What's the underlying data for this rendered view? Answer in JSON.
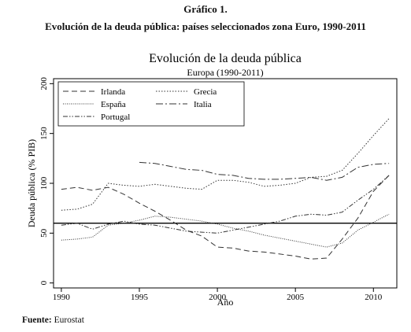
{
  "document": {
    "figure_label": "Gráfico 1.",
    "figure_caption": "Evolución de la deuda pública: países seleccionados zona Euro, 1990-2011",
    "source_label": "Fuente:",
    "source_text": "Eurostat"
  },
  "chart_data": {
    "type": "line",
    "title": "Evolución de la deuda pública",
    "subtitle": "Europa (1990-2011)",
    "xlabel": "Año",
    "ylabel": "Deuda pública (% PIB)",
    "xlim": [
      1989.5,
      2011.5
    ],
    "ylim": [
      -5,
      205
    ],
    "xticks": [
      1990,
      1995,
      2000,
      2005,
      2010
    ],
    "yticks": [
      0,
      50,
      100,
      150,
      200
    ],
    "reference_line": 60,
    "grid": false,
    "legend_position": "top",
    "series": [
      {
        "name": "Irlanda",
        "dash": "7,4",
        "x": [
          1990,
          1991,
          1992,
          1993,
          1994,
          1995,
          1996,
          1997,
          1998,
          1999,
          2000,
          2001,
          2002,
          2003,
          2004,
          2005,
          2006,
          2007,
          2008,
          2009,
          2010,
          2011
        ],
        "y": [
          94,
          96,
          93,
          96,
          89,
          80,
          72,
          63,
          53,
          47,
          36,
          35,
          32,
          31,
          29,
          27,
          24,
          25,
          44,
          65,
          92,
          108
        ]
      },
      {
        "name": "Grecia",
        "dash": "1.5,2",
        "x": [
          1990,
          1991,
          1992,
          1993,
          1994,
          1995,
          1996,
          1997,
          1998,
          1999,
          2000,
          2001,
          2002,
          2003,
          2004,
          2005,
          2006,
          2007,
          2008,
          2009,
          2010,
          2011
        ],
        "y": [
          73,
          74,
          79,
          100,
          98,
          97,
          99,
          97,
          95,
          94,
          103,
          103,
          101,
          97,
          98,
          100,
          106,
          107,
          113,
          130,
          148,
          165
        ]
      },
      {
        "name": "España",
        "dash": "1,1.5",
        "x": [
          1990,
          1991,
          1992,
          1993,
          1994,
          1995,
          1996,
          1997,
          1998,
          1999,
          2000,
          2001,
          2002,
          2003,
          2004,
          2005,
          2006,
          2007,
          2008,
          2009,
          2010,
          2011
        ],
        "y": [
          43,
          44,
          46,
          58,
          60,
          63,
          67,
          66,
          64,
          62,
          59,
          55,
          52,
          48,
          45,
          42,
          39,
          36,
          40,
          53,
          61,
          69
        ]
      },
      {
        "name": "Italia",
        "dash": "9,3,2,3",
        "x": [
          1995,
          1996,
          1997,
          1998,
          1999,
          2000,
          2001,
          2002,
          2003,
          2004,
          2005,
          2006,
          2007,
          2008,
          2009,
          2010,
          2011
        ],
        "y": [
          121,
          120,
          117,
          114,
          113,
          109,
          108,
          105,
          104,
          104,
          105,
          106,
          103,
          106,
          116,
          119,
          120
        ]
      },
      {
        "name": "Portugal",
        "dash": "6,2,1.5,2,1.5,2",
        "x": [
          1990,
          1991,
          1992,
          1993,
          1994,
          1995,
          1996,
          1997,
          1998,
          1999,
          2000,
          2001,
          2002,
          2003,
          2004,
          2005,
          2006,
          2007,
          2008,
          2009,
          2010,
          2011
        ],
        "y": [
          58,
          60,
          54,
          59,
          62,
          59,
          58,
          55,
          52,
          51,
          50,
          53,
          56,
          59,
          62,
          67,
          69,
          68,
          71,
          83,
          94,
          108
        ]
      }
    ]
  }
}
